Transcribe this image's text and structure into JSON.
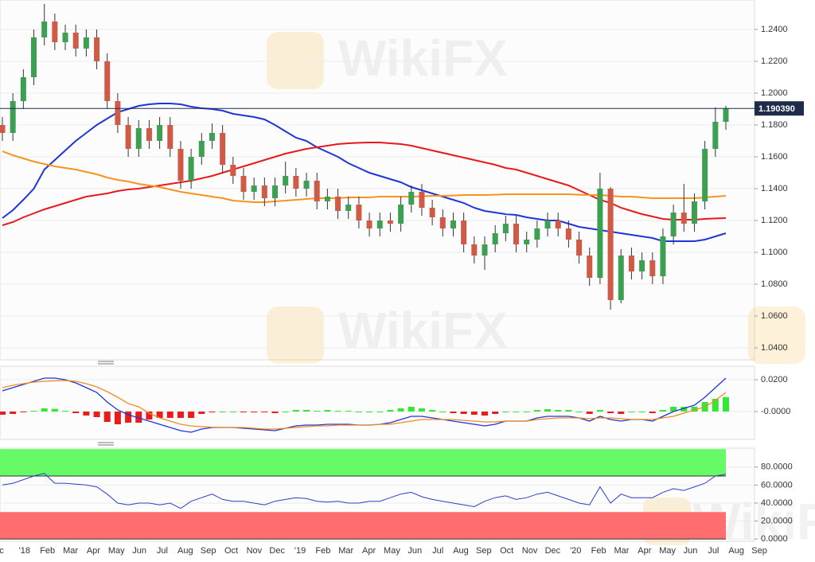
{
  "watermark": "WikiFX",
  "x_axis_labels": [
    "c",
    "'18",
    "Feb",
    "Mar",
    "Apr",
    "May",
    "Jun",
    "Jul",
    "Aug",
    "Sep",
    "Oct",
    "Nov",
    "Dec",
    "'19",
    "Feb",
    "Mar",
    "Apr",
    "May",
    "Jun",
    "Jul",
    "Aug",
    "Sep",
    "Oct",
    "Nov",
    "Dec",
    "'20",
    "Feb",
    "Mar",
    "Apr",
    "May",
    "Jun",
    "Jul",
    "Aug",
    "Sep"
  ],
  "chart_data": [
    {
      "type": "candlestick",
      "grid": true,
      "up_color": "#3d9f52",
      "down_color": "#cf5a46",
      "wick_color": "#333333",
      "ylim": [
        1.0325,
        1.2585
      ],
      "yticks": [
        {
          "value": 1.04,
          "label": "1.0400"
        },
        {
          "value": 1.06,
          "label": "1.0600"
        },
        {
          "value": 1.08,
          "label": "1.0800"
        },
        {
          "value": 1.1,
          "label": "1.1000"
        },
        {
          "value": 1.12,
          "label": "1.1200"
        },
        {
          "value": 1.14,
          "label": "1.1400"
        },
        {
          "value": 1.16,
          "label": "1.1600"
        },
        {
          "value": 1.18,
          "label": "1.1800"
        },
        {
          "value": 1.2,
          "label": "1.2000"
        },
        {
          "value": 1.22,
          "label": "1.2200"
        },
        {
          "value": 1.24,
          "label": "1.2400"
        }
      ],
      "last_price": {
        "value": 1.19039,
        "label": "1.190390",
        "color": "#1e2b4a"
      },
      "open": [
        1.18,
        1.175,
        1.195,
        1.21,
        1.235,
        1.245,
        1.232,
        1.238,
        1.228,
        1.235,
        1.22,
        1.195,
        1.18,
        1.165,
        1.178,
        1.17,
        1.18,
        1.165,
        1.145,
        1.16,
        1.17,
        1.175,
        1.155,
        1.148,
        1.138,
        1.142,
        1.134,
        1.142,
        1.148,
        1.14,
        1.145,
        1.132,
        1.135,
        1.126,
        1.13,
        1.12,
        1.115,
        1.12,
        1.118,
        1.13,
        1.138,
        1.128,
        1.122,
        1.115,
        1.12,
        1.105,
        1.098,
        1.105,
        1.112,
        1.118,
        1.105,
        1.108,
        1.115,
        1.12,
        1.115,
        1.108,
        1.098,
        1.084,
        1.14,
        1.07,
        1.098,
        1.088,
        1.095,
        1.085,
        1.11,
        1.125,
        1.118,
        1.132,
        1.165,
        1.182
      ],
      "high": [
        1.185,
        1.2,
        1.215,
        1.24,
        1.256,
        1.25,
        1.243,
        1.243,
        1.24,
        1.24,
        1.225,
        1.2,
        1.185,
        1.183,
        1.183,
        1.185,
        1.185,
        1.17,
        1.165,
        1.175,
        1.181,
        1.18,
        1.16,
        1.153,
        1.147,
        1.147,
        1.147,
        1.157,
        1.153,
        1.15,
        1.15,
        1.14,
        1.14,
        1.135,
        1.135,
        1.125,
        1.125,
        1.125,
        1.135,
        1.142,
        1.143,
        1.133,
        1.127,
        1.125,
        1.125,
        1.11,
        1.11,
        1.117,
        1.123,
        1.123,
        1.113,
        1.12,
        1.125,
        1.125,
        1.12,
        1.113,
        1.103,
        1.15,
        1.141,
        1.102,
        1.103,
        1.1,
        1.1,
        1.115,
        1.13,
        1.143,
        1.137,
        1.17,
        1.191,
        1.192
      ],
      "low": [
        1.17,
        1.17,
        1.19,
        1.205,
        1.23,
        1.227,
        1.227,
        1.223,
        1.223,
        1.215,
        1.19,
        1.175,
        1.16,
        1.16,
        1.165,
        1.165,
        1.16,
        1.14,
        1.14,
        1.155,
        1.165,
        1.15,
        1.143,
        1.133,
        1.133,
        1.129,
        1.129,
        1.137,
        1.135,
        1.135,
        1.127,
        1.127,
        1.121,
        1.121,
        1.115,
        1.11,
        1.11,
        1.113,
        1.113,
        1.125,
        1.123,
        1.117,
        1.11,
        1.11,
        1.1,
        1.093,
        1.089,
        1.1,
        1.107,
        1.1,
        1.1,
        1.103,
        1.11,
        1.11,
        1.103,
        1.093,
        1.079,
        1.08,
        1.064,
        1.068,
        1.083,
        1.083,
        1.08,
        1.08,
        1.105,
        1.113,
        1.113,
        1.127,
        1.16,
        1.177
      ],
      "close": [
        1.175,
        1.195,
        1.21,
        1.235,
        1.245,
        1.232,
        1.238,
        1.228,
        1.235,
        1.22,
        1.195,
        1.18,
        1.165,
        1.178,
        1.17,
        1.18,
        1.165,
        1.145,
        1.16,
        1.17,
        1.175,
        1.155,
        1.148,
        1.138,
        1.142,
        1.134,
        1.142,
        1.148,
        1.14,
        1.145,
        1.132,
        1.135,
        1.126,
        1.13,
        1.12,
        1.115,
        1.12,
        1.118,
        1.13,
        1.138,
        1.128,
        1.122,
        1.115,
        1.12,
        1.105,
        1.098,
        1.105,
        1.112,
        1.118,
        1.105,
        1.108,
        1.115,
        1.12,
        1.115,
        1.108,
        1.098,
        1.084,
        1.14,
        1.07,
        1.098,
        1.088,
        1.095,
        1.085,
        1.11,
        1.125,
        1.118,
        1.132,
        1.165,
        1.182,
        1.1904
      ],
      "moving_averages": [
        {
          "color": "#1f35d6",
          "values": [
            1.1215,
            1.1265,
            1.133,
            1.14,
            1.152,
            1.158,
            1.164,
            1.17,
            1.175,
            1.18,
            1.184,
            1.188,
            1.19,
            1.192,
            1.193,
            1.1935,
            1.1935,
            1.193,
            1.1915,
            1.1905,
            1.19,
            1.189,
            1.187,
            1.186,
            1.185,
            1.1835,
            1.18,
            1.176,
            1.172,
            1.17,
            1.166,
            1.163,
            1.16,
            1.156,
            1.153,
            1.15,
            1.148,
            1.146,
            1.144,
            1.141,
            1.139,
            1.137,
            1.135,
            1.133,
            1.131,
            1.128,
            1.126,
            1.125,
            1.124,
            1.1235,
            1.122,
            1.121,
            1.12,
            1.12,
            1.118,
            1.116,
            1.115,
            1.114,
            1.113,
            1.112,
            1.111,
            1.11,
            1.109,
            1.107,
            1.107,
            1.107,
            1.107,
            1.108,
            1.11,
            1.112
          ]
        },
        {
          "color": "#e8191c",
          "values": [
            1.117,
            1.119,
            1.122,
            1.1245,
            1.127,
            1.129,
            1.131,
            1.133,
            1.135,
            1.136,
            1.137,
            1.1385,
            1.1395,
            1.14,
            1.141,
            1.142,
            1.143,
            1.144,
            1.145,
            1.1465,
            1.148,
            1.15,
            1.152,
            1.154,
            1.156,
            1.158,
            1.16,
            1.162,
            1.1635,
            1.165,
            1.166,
            1.167,
            1.168,
            1.1685,
            1.1688,
            1.169,
            1.169,
            1.1685,
            1.168,
            1.167,
            1.1655,
            1.164,
            1.1625,
            1.161,
            1.1595,
            1.158,
            1.1565,
            1.155,
            1.153,
            1.152,
            1.15,
            1.148,
            1.146,
            1.144,
            1.142,
            1.139,
            1.136,
            1.133,
            1.131,
            1.128,
            1.126,
            1.124,
            1.1225,
            1.121,
            1.1205,
            1.1205,
            1.1205,
            1.121,
            1.1213,
            1.1215
          ]
        },
        {
          "color": "#f7931e",
          "values": [
            1.1635,
            1.161,
            1.159,
            1.157,
            1.1555,
            1.154,
            1.153,
            1.152,
            1.1505,
            1.149,
            1.147,
            1.1455,
            1.1445,
            1.143,
            1.142,
            1.141,
            1.1395,
            1.138,
            1.137,
            1.136,
            1.135,
            1.134,
            1.1325,
            1.132,
            1.1315,
            1.1315,
            1.132,
            1.1325,
            1.133,
            1.1335,
            1.134,
            1.134,
            1.134,
            1.1345,
            1.1345,
            1.1345,
            1.135,
            1.135,
            1.135,
            1.135,
            1.1352,
            1.1355,
            1.1355,
            1.1357,
            1.136,
            1.136,
            1.136,
            1.1362,
            1.1365,
            1.1365,
            1.1365,
            1.1365,
            1.1365,
            1.1365,
            1.1365,
            1.1362,
            1.136,
            1.136,
            1.1355,
            1.135,
            1.135,
            1.1345,
            1.134,
            1.134,
            1.134,
            1.134,
            1.134,
            1.1345,
            1.135,
            1.1355
          ]
        }
      ]
    },
    {
      "type": "macd",
      "grid": true,
      "ylim": [
        -0.0175,
        0.0285
      ],
      "yticks": [
        {
          "value": 0.02,
          "label": "0.0200"
        },
        {
          "value": 0,
          "label": "-0.0000"
        }
      ],
      "series": [
        {
          "color": "#1f35d6",
          "values": [
            0.013,
            0.015,
            0.017,
            0.019,
            0.021,
            0.021,
            0.02,
            0.018,
            0.015,
            0.012,
            0.006,
            0.001,
            -0.002,
            -0.004,
            -0.006,
            -0.008,
            -0.01,
            -0.012,
            -0.013,
            -0.011,
            -0.01,
            -0.01,
            -0.01,
            -0.0105,
            -0.011,
            -0.0115,
            -0.012,
            -0.0105,
            -0.009,
            -0.0085,
            -0.0085,
            -0.008,
            -0.008,
            -0.008,
            -0.0085,
            -0.0085,
            -0.008,
            -0.007,
            -0.005,
            -0.003,
            -0.003,
            -0.004,
            -0.005,
            -0.006,
            -0.007,
            -0.008,
            -0.009,
            -0.008,
            -0.006,
            -0.006,
            -0.006,
            -0.004,
            -0.003,
            -0.003,
            -0.003,
            -0.004,
            -0.006,
            -0.003,
            -0.005,
            -0.006,
            -0.005,
            -0.005,
            -0.006,
            -0.003,
            0,
            0.002,
            0.004,
            0.009,
            0.015,
            0.021
          ]
        },
        {
          "color": "#f08a24",
          "values": [
            0.015,
            0.0165,
            0.0175,
            0.0185,
            0.019,
            0.0193,
            0.0195,
            0.019,
            0.0175,
            0.0155,
            0.0125,
            0.009,
            0.005,
            0.003,
            -0.001,
            -0.004,
            -0.006,
            -0.008,
            -0.009,
            -0.0095,
            -0.0098,
            -0.01,
            -0.01,
            -0.01,
            -0.0105,
            -0.011,
            -0.011,
            -0.0105,
            -0.01,
            -0.0095,
            -0.009,
            -0.009,
            -0.0085,
            -0.0085,
            -0.0085,
            -0.0085,
            -0.008,
            -0.008,
            -0.007,
            -0.006,
            -0.005,
            -0.005,
            -0.005,
            -0.005,
            -0.0055,
            -0.006,
            -0.0065,
            -0.0065,
            -0.006,
            -0.006,
            -0.006,
            -0.005,
            -0.0045,
            -0.004,
            -0.004,
            -0.004,
            -0.0045,
            -0.004,
            -0.004,
            -0.0045,
            -0.005,
            -0.005,
            -0.005,
            -0.004,
            -0.003,
            -0.001,
            0.001,
            0.003,
            0.007,
            0.012
          ]
        }
      ],
      "histogram": {
        "up_color": "#33e833",
        "down_color": "#e81c1c",
        "values": [
          -0.002,
          -0.0015,
          -0.0005,
          0.0005,
          0.002,
          0.0017,
          0.0005,
          -0.001,
          -0.0025,
          -0.0035,
          -0.0065,
          -0.008,
          -0.007,
          -0.007,
          -0.005,
          -0.004,
          -0.004,
          -0.004,
          -0.004,
          -0.0015,
          -0.0002,
          0,
          0,
          -0.0005,
          -0.0005,
          -0.0005,
          -0.001,
          0,
          0.001,
          0.001,
          0.0005,
          0.001,
          0.0005,
          0.0005,
          0,
          0,
          0,
          0.001,
          0.002,
          0.003,
          0.002,
          0.001,
          0,
          -0.001,
          -0.0015,
          -0.002,
          -0.0025,
          -0.0015,
          0,
          0,
          0,
          0.001,
          0.0015,
          0.001,
          0.001,
          0,
          -0.0015,
          0.001,
          -0.001,
          -0.0015,
          0,
          0,
          -0.001,
          0.001,
          0.003,
          0.003,
          0.003,
          0.006,
          0.008,
          0.009
        ]
      }
    },
    {
      "type": "line",
      "grid": true,
      "ylim": [
        -2.5,
        101
      ],
      "color": "#2a3fc9",
      "yticks": [
        {
          "value": 0,
          "label": "0.0000"
        },
        {
          "value": 20,
          "label": "20.0000"
        },
        {
          "value": 40,
          "label": "40.0000"
        },
        {
          "value": 60,
          "label": "60.0000"
        },
        {
          "value": 80,
          "label": "80.0000"
        }
      ],
      "zones": [
        {
          "from": 70,
          "to": 100,
          "color": "#66fb66"
        },
        {
          "from": 0,
          "to": 30,
          "color": "#ff6e6e"
        }
      ],
      "values": [
        60,
        62,
        66,
        70,
        73,
        62,
        62,
        61,
        60,
        58,
        50,
        40,
        38,
        40,
        40,
        38,
        40,
        34,
        42,
        46,
        50,
        44,
        42,
        42,
        40,
        38,
        42,
        44,
        46,
        45,
        42,
        41,
        42,
        40,
        40,
        42,
        42,
        46,
        50,
        52,
        47,
        44,
        42,
        40,
        38,
        36,
        42,
        46,
        48,
        44,
        46,
        50,
        52,
        48,
        44,
        40,
        38,
        58,
        40,
        50,
        46,
        46,
        46,
        52,
        56,
        54,
        58,
        62,
        70,
        72
      ]
    }
  ]
}
